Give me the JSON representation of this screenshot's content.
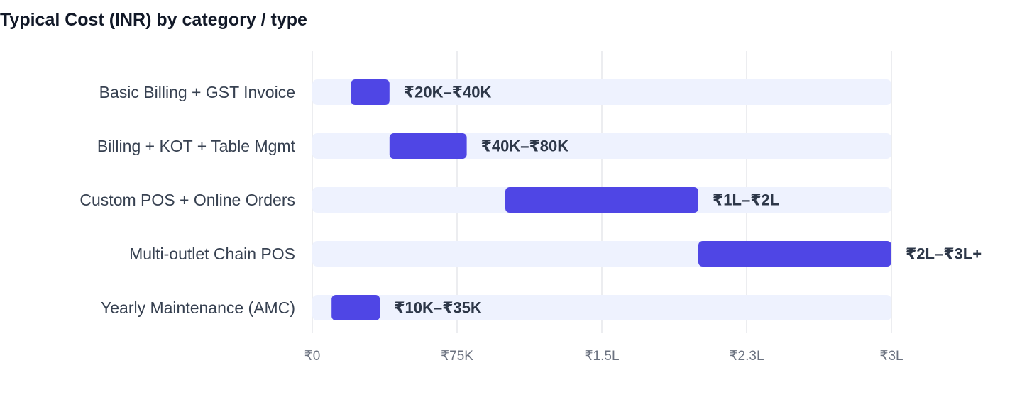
{
  "chart_data": {
    "type": "bar",
    "orientation": "horizontal-range",
    "title": "Typical Cost (INR) by category / type",
    "xlabel": "",
    "ylabel": "",
    "xlim": [
      0,
      300000
    ],
    "grid": true,
    "legend": "none",
    "categories": [
      "Basic Billing + GST Invoice",
      "Billing + KOT + Table Mgmt",
      "Custom POS + Online Orders",
      "Multi-outlet Chain POS",
      "Yearly Maintenance (AMC)"
    ],
    "ranges": [
      [
        20000,
        40000
      ],
      [
        40000,
        80000
      ],
      [
        100000,
        200000
      ],
      [
        200000,
        300000
      ],
      [
        10000,
        35000
      ]
    ],
    "value_labels": [
      "₹20K–₹40K",
      "₹40K–₹80K",
      "₹1L–₹2L",
      "₹2L–₹3L+",
      "₹10K–₹35K"
    ],
    "x_ticks": [
      0,
      75000,
      150000,
      225000,
      300000
    ],
    "x_tick_labels": [
      "₹0",
      "₹75K",
      "₹1.5L",
      "₹2.3L",
      "₹3L"
    ],
    "colors": {
      "bar": "#4f46e5",
      "track": "#eef2fe",
      "grid": "#e5e7eb",
      "title": "#111827",
      "category_text": "#374151",
      "value_text": "#2d3748",
      "tick_text": "#6b7280"
    }
  }
}
